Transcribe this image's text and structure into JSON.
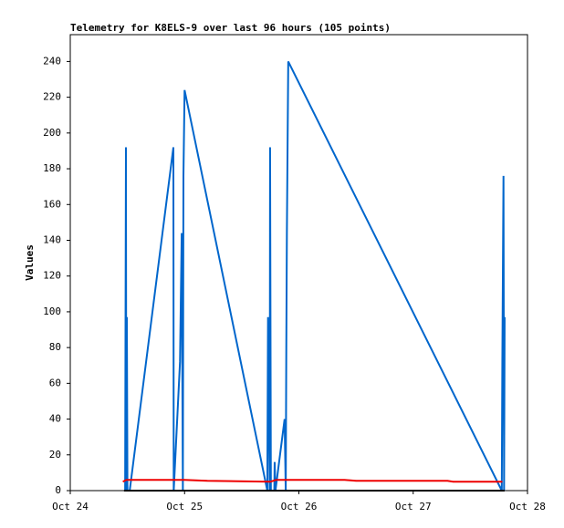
{
  "chart_data": {
    "type": "line",
    "title": "Telemetry for K8ELS-9 over last 96 hours (105 points)",
    "y_label": "Values",
    "xlim": [
      0,
      4
    ],
    "xticks": [
      {
        "value": 0,
        "label": "Oct 24"
      },
      {
        "value": 1,
        "label": "Oct 25"
      },
      {
        "value": 2,
        "label": "Oct 26"
      },
      {
        "value": 3,
        "label": "Oct 27"
      },
      {
        "value": 4,
        "label": "Oct 28"
      }
    ],
    "ylim": [
      0,
      255
    ],
    "yticks": [
      0,
      20,
      40,
      60,
      80,
      100,
      120,
      140,
      160,
      180,
      200,
      220,
      240
    ],
    "grid": false,
    "series": [
      {
        "color": "#0066cc",
        "x": [
          0.48,
          0.487,
          0.49,
          0.495,
          0.5,
          0.52,
          0.902,
          0.905,
          0.96,
          0.975,
          0.985,
          0.99,
          1.0,
          1.724,
          1.73,
          1.745,
          1.748,
          1.755,
          1.785,
          1.788,
          1.795,
          1.875,
          1.885,
          1.89,
          1.895,
          1.907,
          3.775,
          3.78,
          3.79,
          3.795,
          3.8
        ],
        "values": [
          0,
          192,
          0,
          97,
          0,
          0,
          192,
          0,
          72,
          144,
          0,
          176,
          224,
          0,
          97,
          0,
          192,
          0,
          0,
          16,
          0,
          40,
          0,
          80,
          144,
          240,
          0,
          72,
          176,
          0,
          97
        ]
      },
      {
        "color": "#ee0000",
        "x": [
          0.46,
          0.49,
          0.9,
          1.0,
          1.2,
          1.75,
          1.8,
          2.4,
          2.5,
          3.3,
          3.35,
          3.78
        ],
        "values": [
          5,
          6,
          6,
          6,
          5.5,
          5,
          6,
          6,
          5.5,
          5.5,
          5,
          5
        ]
      },
      {
        "color": "#000000",
        "x": [
          0.47,
          3.8
        ],
        "values": [
          0,
          0
        ]
      }
    ]
  }
}
